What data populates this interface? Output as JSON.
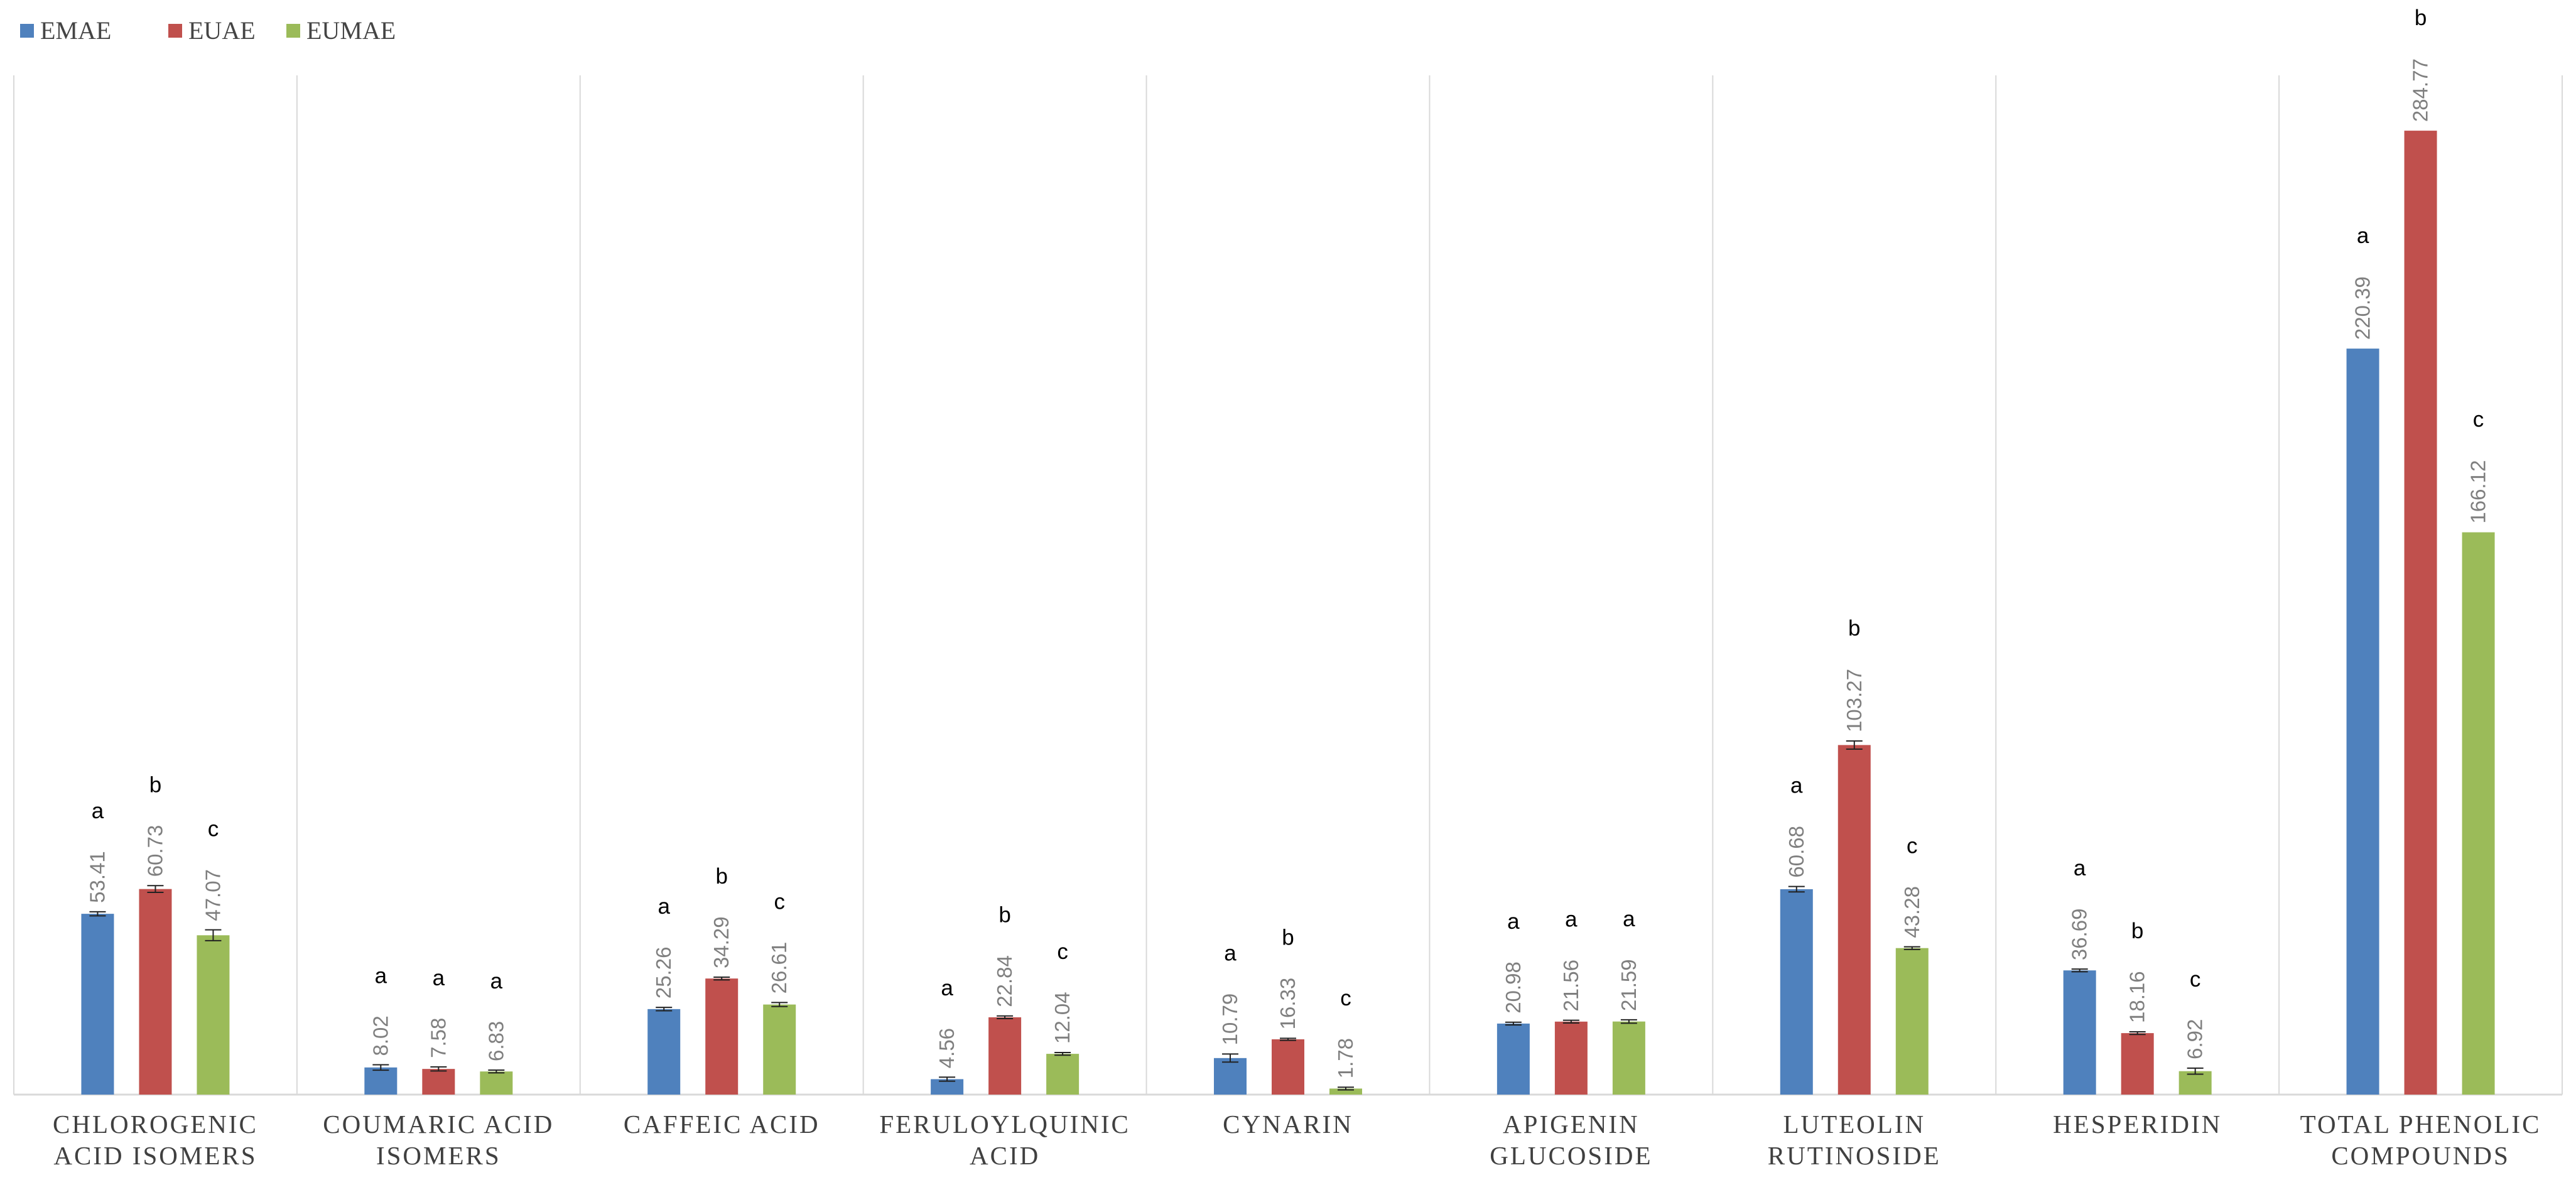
{
  "chart_data": {
    "type": "bar",
    "title": "",
    "xlabel": "",
    "ylabel": "",
    "ylim": [
      0,
      300
    ],
    "grid": false,
    "legend_position": "top-left",
    "categories": [
      [
        "CHLOROGENIC",
        "ACID ISOMERS"
      ],
      [
        "COUMARIC ACID",
        "ISOMERS"
      ],
      [
        "CAFFEIC ACID"
      ],
      [
        "FERULOYLQUINIC",
        "ACID"
      ],
      [
        "CYNARIN"
      ],
      [
        "APIGENIN",
        "GLUCOSIDE"
      ],
      [
        "LUTEOLIN",
        "RUTINOSIDE"
      ],
      [
        "HESPERIDIN"
      ],
      [
        "TOTAL PHENOLIC",
        "COMPOUNDS"
      ]
    ],
    "series": [
      {
        "name": "EMAE",
        "color": "#4f81bd",
        "values": [
          53.41,
          8.02,
          25.26,
          4.56,
          10.79,
          20.98,
          60.68,
          36.69,
          220.39
        ],
        "labels": [
          "53.41",
          "8.02",
          "25.26",
          "4.56",
          "10.79",
          "20.98",
          "60.68",
          "36.69",
          "220.39"
        ],
        "errors": [
          0.6,
          0.8,
          0.5,
          0.6,
          1.2,
          0.4,
          0.8,
          0.4,
          0
        ],
        "significance": [
          "a",
          "a",
          "a",
          "a",
          "a",
          "a",
          "a",
          "a",
          "a"
        ]
      },
      {
        "name": "EUAE",
        "color": "#c0504d",
        "values": [
          60.73,
          7.58,
          34.29,
          22.84,
          16.33,
          21.56,
          103.27,
          18.16,
          284.77
        ],
        "labels": [
          "60.73",
          "7.58",
          "34.29",
          "22.84",
          "16.33",
          "21.56",
          "103.27",
          "18.16",
          "284.77"
        ],
        "errors": [
          1.0,
          0.6,
          0.4,
          0.4,
          0.3,
          0.4,
          1.2,
          0.4,
          0
        ],
        "significance": [
          "b",
          "a",
          "b",
          "b",
          "b",
          "a",
          "b",
          "b",
          "b"
        ]
      },
      {
        "name": "EUMAE",
        "color": "#9bbb59",
        "values": [
          47.07,
          6.83,
          26.61,
          12.04,
          1.78,
          21.59,
          43.28,
          6.92,
          166.12
        ],
        "labels": [
          "47.07",
          "6.83",
          "26.61",
          "12.04",
          "1.78",
          "21.59",
          "43.28",
          "6.92",
          "166.12"
        ],
        "errors": [
          1.6,
          0.4,
          0.6,
          0.4,
          0.4,
          0.5,
          0.4,
          0.9,
          0
        ],
        "significance": [
          "c",
          "a",
          "c",
          "c",
          "c",
          "a",
          "c",
          "c",
          "c"
        ]
      }
    ]
  }
}
